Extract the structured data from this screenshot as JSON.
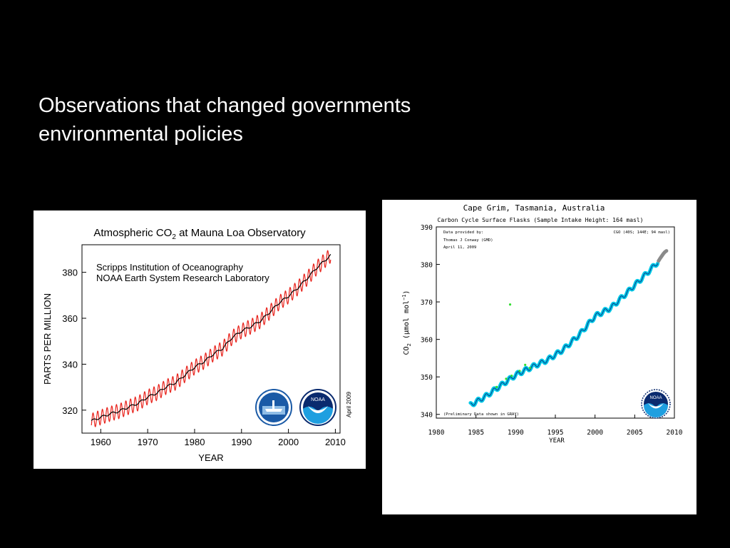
{
  "slide": {
    "title_line1": "Observations that changed  governments",
    "title_line2": "environmental policies"
  },
  "chart_data": [
    {
      "type": "line",
      "title": "Atmospheric CO",
      "title_sub": "2",
      "title_rest": " at Mauna Loa Observatory",
      "annotation_line1": "Scripps Institution of Oceanography",
      "annotation_line2": "NOAA Earth System Research Laboratory",
      "xlabel": "YEAR",
      "ylabel": "PARTS PER MILLION",
      "date_note": "April 2009",
      "xlim": [
        1956,
        2011
      ],
      "ylim": [
        310,
        392
      ],
      "xticks": [
        1960,
        1970,
        1980,
        1990,
        2000,
        2010
      ],
      "yticks": [
        320,
        340,
        360,
        380
      ],
      "x": [
        1958,
        1960,
        1962,
        1964,
        1966,
        1968,
        1970,
        1972,
        1974,
        1976,
        1978,
        1980,
        1982,
        1984,
        1986,
        1988,
        1990,
        1992,
        1994,
        1996,
        1998,
        2000,
        2002,
        2004,
        2006,
        2008,
        2009
      ],
      "series": [
        {
          "name": "",
          "color": "#e8231c",
          "values": [
            315.3,
            316.9,
            318.4,
            319.6,
            321.4,
            323.0,
            325.7,
            327.5,
            330.2,
            332.0,
            335.4,
            338.7,
            341.1,
            344.4,
            346.9,
            351.6,
            354.4,
            356.4,
            358.8,
            362.6,
            366.7,
            369.6,
            373.2,
            377.4,
            381.9,
            385.6,
            387.4
          ],
          "seasonal_amplitude": 3.2
        },
        {
          "name": "",
          "color": "#000000",
          "values": [
            315.3,
            316.9,
            318.4,
            319.6,
            321.4,
            323.0,
            325.7,
            327.5,
            330.2,
            332.0,
            335.4,
            338.7,
            341.1,
            344.4,
            346.9,
            351.6,
            354.4,
            356.4,
            358.8,
            362.6,
            366.7,
            369.6,
            373.2,
            377.4,
            381.9,
            385.6,
            387.4
          ]
        }
      ],
      "grid": false,
      "logos": [
        "scripps-logo",
        "noaa-logo"
      ]
    },
    {
      "type": "scatter",
      "title": "Cape Grim, Tasmania, Australia",
      "subtitle": "Carbon Cycle Surface Flasks (Sample Intake Height: 164 masl)",
      "credit_line1": "Data provided by:",
      "credit_line2": "Thomas J Conway (GMD)",
      "credit_line3": "April 11, 2009",
      "station": "CGO (40S; 144E; 94 masl)",
      "prelim_note": "(Preliminary Data shown in GRAY)",
      "xlabel": "YEAR",
      "ylabel_main": "CO",
      "ylabel_sub": "2",
      "ylabel_unit": " (μmol mol",
      "ylabel_sup": "−1",
      "ylabel_close": ")",
      "xlim": [
        1980,
        2010
      ],
      "ylim": [
        339,
        390
      ],
      "xticks": [
        1980,
        1985,
        1990,
        1995,
        2000,
        2005,
        2010
      ],
      "yticks": [
        340,
        350,
        360,
        370,
        380,
        390
      ],
      "x": [
        1984.3,
        1986,
        1988,
        1990,
        1992,
        1994,
        1996,
        1998,
        2000,
        2002,
        2004,
        2006,
        2007.9
      ],
      "series": [
        {
          "name": "",
          "color": "#00c8e6",
          "values": [
            342.5,
            344.5,
            347.5,
            350.5,
            352.6,
            354.5,
            357.3,
            361.2,
            366.2,
            368.4,
            372.4,
            376.5,
            380.6
          ]
        },
        {
          "name": "",
          "color": "#8a8a8a",
          "x": [
            2008.0,
            2008.2,
            2008.4,
            2008.6,
            2008.8,
            2009.0
          ],
          "values": [
            380.9,
            381.6,
            382.2,
            382.8,
            383.3,
            383.6
          ]
        }
      ],
      "outliers": [
        {
          "x": 1989.3,
          "y": 369.3
        },
        {
          "x": 1988.8,
          "y": 349.5
        },
        {
          "x": 1989.5,
          "y": 350.3
        },
        {
          "x": 1990.5,
          "y": 351.6
        },
        {
          "x": 1991.2,
          "y": 353.2
        },
        {
          "x": 1991.8,
          "y": 352.4
        },
        {
          "x": 1987.6,
          "y": 347.3
        }
      ],
      "outlier_color": "#33dd33",
      "grid": false,
      "logos": [
        "noaa-logo"
      ]
    }
  ]
}
